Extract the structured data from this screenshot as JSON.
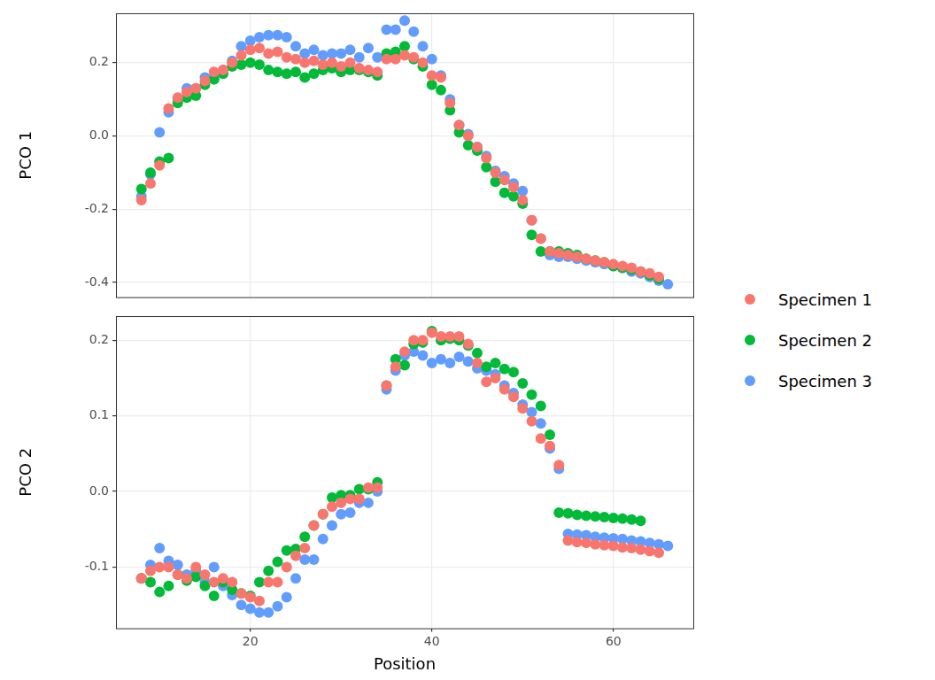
{
  "chart_data": [
    {
      "type": "scatter",
      "y_label": "PCO 1",
      "legend": "right",
      "grid": true,
      "tick_labels": "y",
      "x": [
        8,
        9,
        10,
        11,
        12,
        13,
        14,
        15,
        16,
        17,
        18,
        19,
        20,
        21,
        22,
        23,
        24,
        25,
        26,
        27,
        28,
        29,
        30,
        31,
        32,
        33,
        34,
        35,
        36,
        37,
        38,
        39,
        40,
        41,
        42,
        43,
        44,
        45,
        46,
        47,
        48,
        49,
        50,
        51,
        52,
        53,
        54,
        55,
        56,
        57,
        58,
        59,
        60,
        61,
        62,
        63,
        64,
        65,
        66
      ],
      "xlim": [
        5.2,
        68.8
      ],
      "xticks": [
        20,
        40,
        60
      ],
      "ylim": [
        -0.44,
        0.335
      ],
      "yticks": [
        {
          "value": -0.4,
          "label": "-0.4"
        },
        {
          "value": -0.2,
          "label": "-0.2"
        },
        {
          "value": 0,
          "label": "0.0"
        },
        {
          "value": 0.2,
          "label": "0.2"
        }
      ],
      "series": [
        {
          "name": "Specimen 1",
          "color": "#f8766d",
          "marker": "circle",
          "values": [
            -0.175,
            -0.13,
            -0.08,
            0.075,
            0.105,
            0.12,
            0.13,
            0.15,
            0.175,
            0.18,
            0.2,
            0.22,
            0.235,
            0.24,
            0.225,
            0.23,
            0.215,
            0.21,
            0.2,
            0.205,
            0.195,
            0.2,
            0.19,
            0.2,
            0.185,
            0.18,
            0.175,
            0.21,
            0.21,
            0.22,
            0.215,
            0.2,
            0.165,
            0.16,
            0.09,
            0.03,
            0.0,
            -0.03,
            -0.06,
            -0.1,
            -0.12,
            -0.14,
            -0.175,
            -0.23,
            -0.28,
            -0.315,
            -0.32,
            -0.325,
            -0.33,
            -0.335,
            -0.34,
            -0.345,
            -0.35,
            -0.355,
            -0.36,
            -0.37,
            -0.375,
            -0.385,
            null
          ]
        },
        {
          "name": "Specimen 2",
          "color": "#00ba38",
          "marker": "circle",
          "values": [
            -0.145,
            -0.1,
            -0.07,
            -0.06,
            0.09,
            0.105,
            0.11,
            0.14,
            0.155,
            0.17,
            0.19,
            0.195,
            0.2,
            0.195,
            0.18,
            0.175,
            0.17,
            0.175,
            0.16,
            0.17,
            0.18,
            0.185,
            0.175,
            0.18,
            0.18,
            0.175,
            0.165,
            0.225,
            0.23,
            0.245,
            0.21,
            0.19,
            0.14,
            0.125,
            0.07,
            0.01,
            -0.025,
            -0.04,
            -0.085,
            -0.125,
            -0.155,
            -0.165,
            -0.185,
            -0.27,
            -0.315,
            -0.315,
            -0.315,
            -0.32,
            -0.325,
            -0.335,
            -0.34,
            -0.345,
            -0.355,
            -0.36,
            -0.365,
            -0.37,
            -0.38,
            -0.39,
            null
          ]
        },
        {
          "name": "Specimen 3",
          "color": "#619cff",
          "marker": "circle",
          "values": [
            -0.165,
            -0.105,
            0.01,
            0.065,
            0.1,
            0.13,
            0.13,
            0.16,
            0.155,
            0.18,
            0.205,
            0.245,
            0.26,
            0.27,
            0.275,
            0.275,
            0.27,
            0.245,
            0.225,
            0.235,
            0.22,
            0.225,
            0.225,
            0.235,
            0.215,
            0.24,
            0.215,
            0.29,
            0.29,
            0.315,
            0.285,
            0.245,
            0.21,
            0.165,
            0.1,
            0.03,
            0.005,
            -0.03,
            -0.055,
            -0.095,
            -0.11,
            -0.13,
            -0.15,
            -0.23,
            -0.28,
            -0.325,
            -0.33,
            -0.33,
            -0.335,
            -0.34,
            -0.345,
            -0.35,
            -0.355,
            -0.36,
            -0.37,
            -0.375,
            -0.385,
            -0.395,
            -0.405
          ]
        }
      ]
    },
    {
      "type": "scatter",
      "x_label": "Position",
      "y_label": "PCO 2",
      "legend": "right",
      "grid": true,
      "x": [
        8,
        9,
        10,
        11,
        12,
        13,
        14,
        15,
        16,
        17,
        18,
        19,
        20,
        21,
        22,
        23,
        24,
        25,
        26,
        27,
        28,
        29,
        30,
        31,
        32,
        33,
        34,
        35,
        36,
        37,
        38,
        39,
        40,
        41,
        42,
        43,
        44,
        45,
        46,
        47,
        48,
        49,
        50,
        51,
        52,
        53,
        54,
        55,
        56,
        57,
        58,
        59,
        60,
        61,
        62,
        63,
        64,
        65,
        66
      ],
      "xlim": [
        5.2,
        68.8
      ],
      "xticks": [
        20,
        40,
        60
      ],
      "ylim": [
        -0.181,
        0.232
      ],
      "yticks": [
        {
          "value": -0.1,
          "label": "-0.1"
        },
        {
          "value": 0,
          "label": "0.0"
        },
        {
          "value": 0.1,
          "label": "0.1"
        },
        {
          "value": 0.2,
          "label": "0.2"
        }
      ],
      "series": [
        {
          "name": "Specimen 1",
          "color": "#f8766d",
          "marker": "circle",
          "values": [
            -0.115,
            -0.105,
            -0.1,
            -0.1,
            -0.11,
            -0.115,
            -0.1,
            -0.11,
            -0.12,
            -0.115,
            -0.12,
            -0.135,
            -0.14,
            -0.145,
            -0.12,
            -0.12,
            -0.1,
            -0.085,
            -0.075,
            -0.045,
            -0.03,
            -0.02,
            -0.015,
            -0.01,
            -0.01,
            0.005,
            0.005,
            0.14,
            0.165,
            0.185,
            0.2,
            0.2,
            0.21,
            0.205,
            0.205,
            0.205,
            0.195,
            0.17,
            0.145,
            0.15,
            0.135,
            0.125,
            0.11,
            0.093,
            0.07,
            0.06,
            0.035,
            -0.065,
            -0.067,
            -0.068,
            -0.07,
            -0.071,
            -0.072,
            -0.074,
            -0.075,
            -0.077,
            -0.079,
            -0.081,
            null
          ]
        },
        {
          "name": "Specimen 2",
          "color": "#00ba38",
          "marker": "circle",
          "values": [
            -0.115,
            -0.12,
            -0.133,
            -0.125,
            -0.11,
            -0.118,
            -0.113,
            -0.125,
            -0.138,
            -0.12,
            -0.13,
            -0.135,
            -0.138,
            -0.12,
            -0.105,
            -0.093,
            -0.078,
            -0.076,
            -0.06,
            -0.045,
            -0.03,
            -0.008,
            -0.005,
            -0.005,
            0.003,
            0.003,
            0.012,
            0.14,
            0.175,
            0.167,
            0.195,
            0.197,
            0.212,
            0.2,
            0.202,
            0.2,
            0.193,
            0.183,
            0.165,
            0.17,
            0.162,
            0.158,
            0.143,
            0.128,
            0.113,
            0.075,
            -0.028,
            -0.029,
            -0.031,
            -0.032,
            -0.033,
            -0.034,
            -0.035,
            -0.036,
            -0.037,
            -0.039,
            null,
            null,
            null
          ]
        },
        {
          "name": "Specimen 3",
          "color": "#619cff",
          "marker": "circle",
          "values": [
            -0.115,
            -0.097,
            -0.075,
            -0.092,
            -0.097,
            -0.11,
            -0.105,
            -0.12,
            -0.1,
            -0.125,
            -0.137,
            -0.15,
            -0.155,
            -0.16,
            -0.16,
            -0.152,
            -0.14,
            -0.115,
            -0.09,
            -0.09,
            -0.063,
            -0.045,
            -0.03,
            -0.028,
            -0.015,
            -0.015,
            0.0,
            0.135,
            0.16,
            0.18,
            0.185,
            0.18,
            0.17,
            0.175,
            0.17,
            0.178,
            0.172,
            0.163,
            0.16,
            0.155,
            0.14,
            0.13,
            0.115,
            0.105,
            0.09,
            0.057,
            0.03,
            -0.056,
            -0.057,
            -0.058,
            -0.06,
            -0.061,
            -0.062,
            -0.063,
            -0.065,
            -0.066,
            -0.068,
            -0.07,
            -0.072
          ]
        }
      ]
    }
  ]
}
